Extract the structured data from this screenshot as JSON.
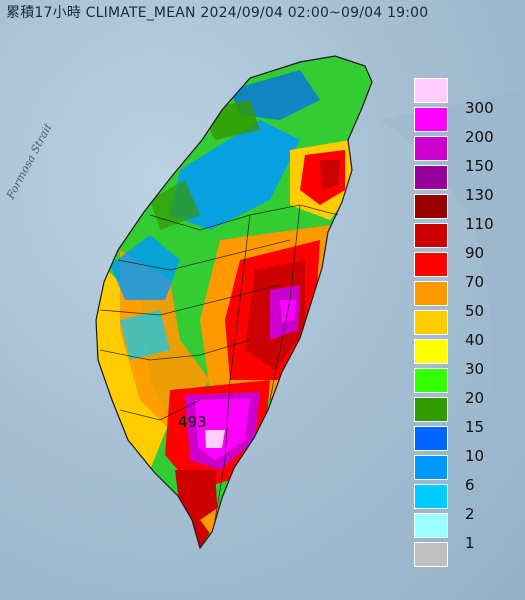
{
  "title": "累積17小時 CLIMATE_MEAN 2024/09/04 02:00~09/04 19:00",
  "sea_label": "Formosa Strait",
  "max_value_label": "493",
  "legend": [
    {
      "label": "300",
      "color": "#ffccff"
    },
    {
      "label": "200",
      "color": "#ff00ff"
    },
    {
      "label": "150",
      "color": "#cc00cc"
    },
    {
      "label": "130",
      "color": "#990099"
    },
    {
      "label": "110",
      "color": "#990000"
    },
    {
      "label": "90",
      "color": "#cc0000"
    },
    {
      "label": "70",
      "color": "#ff0000"
    },
    {
      "label": "50",
      "color": "#ff9900"
    },
    {
      "label": "40",
      "color": "#ffcc00"
    },
    {
      "label": "30",
      "color": "#ffff00"
    },
    {
      "label": "20",
      "color": "#33ff00"
    },
    {
      "label": "15",
      "color": "#339900"
    },
    {
      "label": "10",
      "color": "#0066ff"
    },
    {
      "label": "6",
      "color": "#0099ff"
    },
    {
      "label": "2",
      "color": "#00ccff"
    },
    {
      "label": "1",
      "color": "#99ffff"
    },
    {
      "label": "",
      "color": "#c0c0c0"
    }
  ]
}
